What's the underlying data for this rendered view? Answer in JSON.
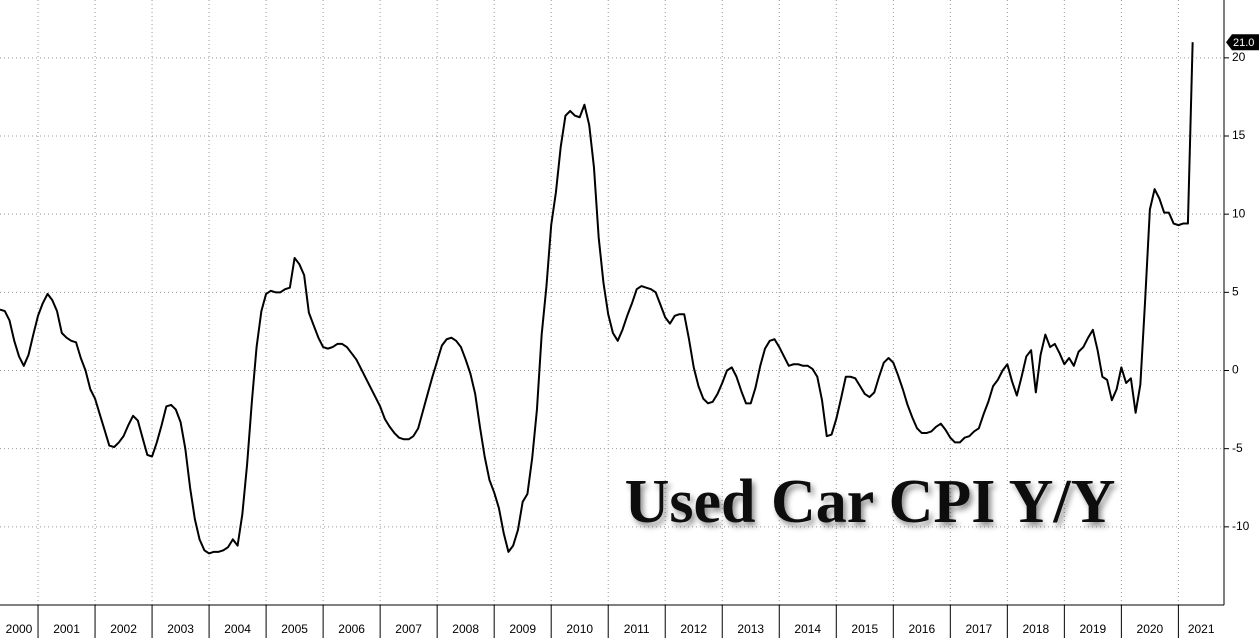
{
  "chart_data": {
    "type": "line",
    "title": "Used Car CPI Y/Y",
    "x": [
      2000.333,
      2000.417,
      2000.5,
      2000.583,
      2000.667,
      2000.75,
      2000.833,
      2000.917,
      2001,
      2001.083,
      2001.167,
      2001.25,
      2001.333,
      2001.417,
      2001.5,
      2001.583,
      2001.667,
      2001.75,
      2001.833,
      2001.917,
      2002,
      2002.083,
      2002.167,
      2002.25,
      2002.333,
      2002.417,
      2002.5,
      2002.583,
      2002.667,
      2002.75,
      2002.833,
      2002.917,
      2003,
      2003.083,
      2003.167,
      2003.25,
      2003.333,
      2003.417,
      2003.5,
      2003.583,
      2003.667,
      2003.75,
      2003.833,
      2003.917,
      2004,
      2004.083,
      2004.167,
      2004.25,
      2004.333,
      2004.417,
      2004.5,
      2004.583,
      2004.667,
      2004.75,
      2004.833,
      2004.917,
      2005,
      2005.083,
      2005.167,
      2005.25,
      2005.333,
      2005.417,
      2005.5,
      2005.583,
      2005.667,
      2005.75,
      2005.833,
      2005.917,
      2006,
      2006.083,
      2006.167,
      2006.25,
      2006.333,
      2006.417,
      2006.5,
      2006.583,
      2006.667,
      2006.75,
      2006.833,
      2006.917,
      2007,
      2007.083,
      2007.167,
      2007.25,
      2007.333,
      2007.417,
      2007.5,
      2007.583,
      2007.667,
      2007.75,
      2007.833,
      2007.917,
      2008,
      2008.083,
      2008.167,
      2008.25,
      2008.333,
      2008.417,
      2008.5,
      2008.583,
      2008.667,
      2008.75,
      2008.833,
      2008.917,
      2009,
      2009.083,
      2009.167,
      2009.25,
      2009.333,
      2009.417,
      2009.5,
      2009.583,
      2009.667,
      2009.75,
      2009.833,
      2009.917,
      2010,
      2010.083,
      2010.167,
      2010.25,
      2010.333,
      2010.417,
      2010.5,
      2010.583,
      2010.667,
      2010.75,
      2010.833,
      2010.917,
      2011,
      2011.083,
      2011.167,
      2011.25,
      2011.333,
      2011.417,
      2011.5,
      2011.583,
      2011.667,
      2011.75,
      2011.833,
      2011.917,
      2012,
      2012.083,
      2012.167,
      2012.25,
      2012.333,
      2012.417,
      2012.5,
      2012.583,
      2012.667,
      2012.75,
      2012.833,
      2012.917,
      2013,
      2013.083,
      2013.167,
      2013.25,
      2013.333,
      2013.417,
      2013.5,
      2013.583,
      2013.667,
      2013.75,
      2013.833,
      2013.917,
      2014,
      2014.083,
      2014.167,
      2014.25,
      2014.333,
      2014.417,
      2014.5,
      2014.583,
      2014.667,
      2014.75,
      2014.833,
      2014.917,
      2015,
      2015.083,
      2015.167,
      2015.25,
      2015.333,
      2015.417,
      2015.5,
      2015.583,
      2015.667,
      2015.75,
      2015.833,
      2015.917,
      2016,
      2016.083,
      2016.167,
      2016.25,
      2016.333,
      2016.417,
      2016.5,
      2016.583,
      2016.667,
      2016.75,
      2016.833,
      2016.917,
      2017,
      2017.083,
      2017.167,
      2017.25,
      2017.333,
      2017.417,
      2017.5,
      2017.583,
      2017.667,
      2017.75,
      2017.833,
      2017.917,
      2018,
      2018.083,
      2018.167,
      2018.25,
      2018.333,
      2018.417,
      2018.5,
      2018.583,
      2018.667,
      2018.75,
      2018.833,
      2018.917,
      2019,
      2019.083,
      2019.167,
      2019.25,
      2019.333,
      2019.417,
      2019.5,
      2019.583,
      2019.667,
      2019.75,
      2019.833,
      2019.917,
      2020,
      2020.083,
      2020.167,
      2020.25,
      2020.333,
      2020.417,
      2020.5,
      2020.583,
      2020.667,
      2020.75,
      2020.833,
      2020.917,
      2021,
      2021.083,
      2021.167,
      2021.25
    ],
    "series": [
      {
        "color": "#000000",
        "values": [
          3.9,
          3.8,
          3.2,
          1.9,
          0.9,
          0.3,
          1.0,
          2.3,
          3.5,
          4.3,
          4.9,
          4.5,
          3.8,
          2.4,
          2.1,
          1.9,
          1.8,
          0.8,
          0.0,
          -1.2,
          -1.8,
          -2.8,
          -3.8,
          -4.8,
          -4.9,
          -4.6,
          -4.2,
          -3.5,
          -2.9,
          -3.2,
          -4.3,
          -5.4,
          -5.5,
          -4.6,
          -3.5,
          -2.3,
          -2.2,
          -2.5,
          -3.3,
          -5.0,
          -7.5,
          -9.5,
          -10.8,
          -11.5,
          -11.7,
          -11.6,
          -11.6,
          -11.5,
          -11.3,
          -10.8,
          -11.2,
          -9.2,
          -6.0,
          -2.0,
          1.5,
          3.8,
          4.9,
          5.1,
          5.0,
          5.0,
          5.2,
          5.3,
          7.2,
          6.8,
          6.1,
          3.7,
          2.9,
          2.1,
          1.5,
          1.4,
          1.5,
          1.7,
          1.7,
          1.5,
          1.1,
          0.7,
          0.1,
          -0.5,
          -1.1,
          -1.7,
          -2.3,
          -3.1,
          -3.6,
          -4.0,
          -4.3,
          -4.4,
          -4.4,
          -4.2,
          -3.7,
          -2.6,
          -1.5,
          -0.4,
          0.6,
          1.6,
          2.0,
          2.1,
          1.9,
          1.5,
          0.7,
          -0.2,
          -1.5,
          -3.6,
          -5.5,
          -7.0,
          -7.8,
          -8.8,
          -10.4,
          -11.6,
          -11.2,
          -10.2,
          -8.4,
          -7.9,
          -5.6,
          -2.5,
          2.3,
          5.4,
          9.3,
          11.4,
          14.3,
          16.3,
          16.6,
          16.3,
          16.2,
          17.0,
          15.7,
          13.0,
          8.5,
          5.6,
          3.6,
          2.4,
          1.9,
          2.6,
          3.5,
          4.3,
          5.2,
          5.4,
          5.3,
          5.2,
          5.0,
          4.2,
          3.4,
          3.0,
          3.5,
          3.6,
          3.6,
          2.0,
          0.2,
          -1.0,
          -1.8,
          -2.1,
          -2.0,
          -1.5,
          -0.8,
          0.0,
          0.2,
          -0.4,
          -1.3,
          -2.1,
          -2.1,
          -1.1,
          0.3,
          1.4,
          1.9,
          2.0,
          1.5,
          0.9,
          0.3,
          0.4,
          0.4,
          0.3,
          0.3,
          0.1,
          -0.4,
          -1.9,
          -4.2,
          -4.1,
          -3.1,
          -1.8,
          -0.4,
          -0.4,
          -0.5,
          -1.0,
          -1.5,
          -1.7,
          -1.4,
          -0.4,
          0.5,
          0.8,
          0.5,
          -0.3,
          -1.2,
          -2.2,
          -3.0,
          -3.7,
          -4.0,
          -4.0,
          -3.9,
          -3.6,
          -3.4,
          -3.8,
          -4.3,
          -4.6,
          -4.6,
          -4.3,
          -4.2,
          -3.9,
          -3.7,
          -2.8,
          -2.0,
          -1.0,
          -0.6,
          0.0,
          0.4,
          -0.7,
          -1.6,
          -0.4,
          0.9,
          1.3,
          -1.4,
          1.0,
          2.3,
          1.5,
          1.7,
          1.1,
          0.4,
          0.8,
          0.3,
          1.2,
          1.5,
          2.1,
          2.6,
          1.3,
          -0.4,
          -0.6,
          -1.9,
          -1.2,
          0.2,
          -0.8,
          -0.5,
          -2.7,
          -0.9,
          4.5,
          10.3,
          11.6,
          11.0,
          10.1,
          10.1,
          9.4,
          9.3,
          9.4,
          9.4,
          21.0
        ]
      }
    ],
    "last_value": {
      "value": 21.0,
      "label": "21.0"
    },
    "xlim": [
      2000.333,
      2021.8
    ],
    "xticks": [
      2000,
      2001,
      2002,
      2003,
      2004,
      2005,
      2006,
      2007,
      2008,
      2009,
      2010,
      2011,
      2012,
      2013,
      2014,
      2015,
      2016,
      2017,
      2018,
      2019,
      2020,
      2021
    ],
    "ylim": [
      -15.0,
      23.7
    ],
    "yticks": [
      -10,
      -5,
      0,
      5,
      10,
      15,
      20
    ],
    "grid": true
  }
}
